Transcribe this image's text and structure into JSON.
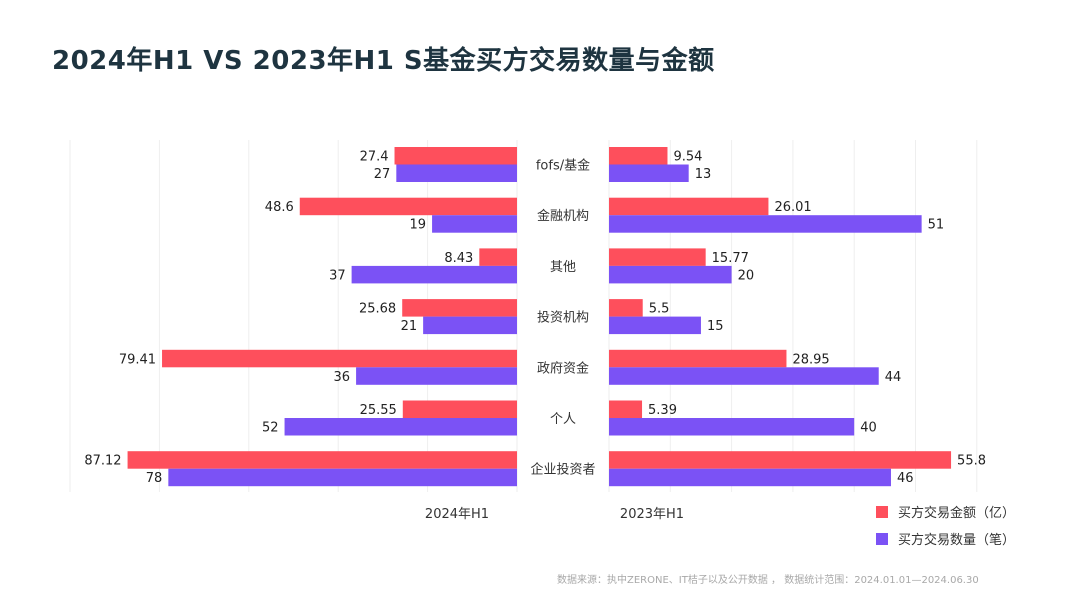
{
  "title": "2024年H1  VS  2023年H1  S基金买方交易数量与金额",
  "source": "数据来源：执中ZERONE、IT桔子以及公开数据 ， 数据统计范围：2024.01.01—2024.06.30",
  "colors": {
    "amount": "#fe4f5c",
    "count": "#7b52f5",
    "title": "#1e3440",
    "grid": "#eeeeee"
  },
  "chart_data": {
    "type": "bar",
    "orientation": "horizontal-butterfly",
    "categories": [
      "fofs/基金",
      "金融机构",
      "其他",
      "投资机构",
      "政府资金",
      "个人",
      "企业投资者"
    ],
    "panels": [
      {
        "name": "2024年H1",
        "side": "left",
        "xlim": [
          0,
          100
        ],
        "series": [
          {
            "name": "买方交易金额（亿）",
            "values": [
              27.4,
              48.6,
              8.43,
              25.68,
              79.41,
              25.55,
              87.12
            ]
          },
          {
            "name": "买方交易数量（笔）",
            "values": [
              27,
              19,
              37,
              21,
              36,
              52,
              78
            ]
          }
        ]
      },
      {
        "name": "2023年H1",
        "side": "right",
        "xlim": [
          0,
          60
        ],
        "series": [
          {
            "name": "买方交易金额（亿）",
            "values": [
              9.54,
              26.01,
              15.77,
              5.5,
              28.95,
              5.39,
              55.8
            ]
          },
          {
            "name": "买方交易数量（笔）",
            "values": [
              13,
              51,
              20,
              15,
              44,
              40,
              46
            ]
          }
        ]
      }
    ],
    "legend": {
      "placement": "bottom-right",
      "entries": [
        "买方交易金额（亿）",
        "买方交易数量（笔）"
      ]
    },
    "grid": true
  }
}
